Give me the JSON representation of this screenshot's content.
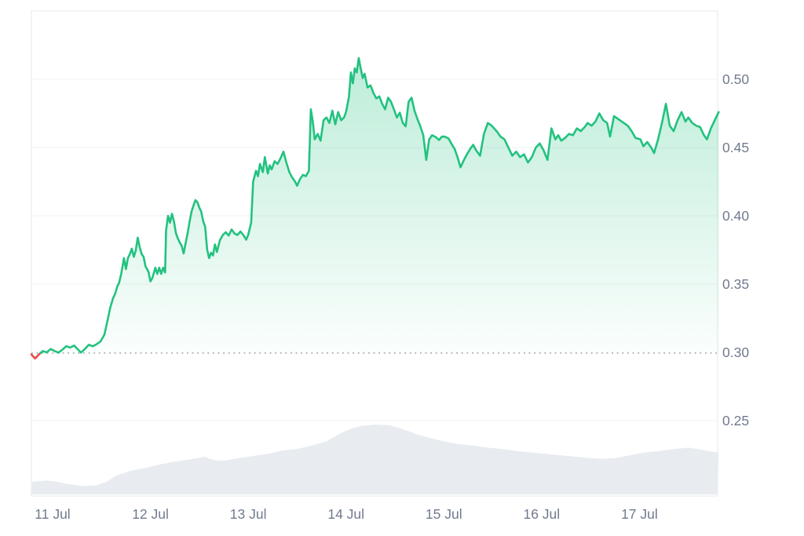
{
  "chart_data": {
    "type": "line",
    "title": "",
    "subtitle": "",
    "xlabel": "",
    "ylabel": "",
    "legend": "none",
    "grid": true,
    "y_axis": {
      "side": "right",
      "tick_values": [
        0.25,
        0.3,
        0.35,
        0.4,
        0.45,
        0.5
      ],
      "tick_labels": [
        "0.25",
        "0.30",
        "0.35",
        "0.40",
        "0.45",
        "0.50"
      ]
    },
    "x_axis": {
      "tick_days": [
        11,
        12,
        13,
        14,
        15,
        16,
        17
      ],
      "tick_labels": [
        "11 Jul",
        "12 Jul",
        "13 Jul",
        "14 Jul",
        "15 Jul",
        "16 Jul",
        "17 Jul"
      ],
      "range_days": [
        10.78,
        17.81
      ]
    },
    "baseline_value": 0.2995,
    "baseline_style": "dotted",
    "price_series": {
      "name": "price",
      "points": [
        [
          10.78,
          0.2985
        ],
        [
          10.82,
          0.2955
        ],
        [
          10.86,
          0.2985
        ],
        [
          10.9,
          0.301
        ],
        [
          10.94,
          0.3
        ],
        [
          10.98,
          0.3025
        ],
        [
          11.02,
          0.301
        ],
        [
          11.06,
          0.2998
        ],
        [
          11.1,
          0.302
        ],
        [
          11.14,
          0.3045
        ],
        [
          11.18,
          0.3035
        ],
        [
          11.22,
          0.305
        ],
        [
          11.26,
          0.302
        ],
        [
          11.29,
          0.2998
        ],
        [
          11.33,
          0.3025
        ],
        [
          11.37,
          0.3055
        ],
        [
          11.41,
          0.3045
        ],
        [
          11.45,
          0.306
        ],
        [
          11.49,
          0.308
        ],
        [
          11.53,
          0.313
        ],
        [
          11.56,
          0.323
        ],
        [
          11.59,
          0.333
        ],
        [
          11.62,
          0.34
        ],
        [
          11.64,
          0.343
        ],
        [
          11.66,
          0.348
        ],
        [
          11.68,
          0.351
        ],
        [
          11.7,
          0.357
        ],
        [
          11.72,
          0.365
        ],
        [
          11.73,
          0.369
        ],
        [
          11.75,
          0.361
        ],
        [
          11.77,
          0.369
        ],
        [
          11.79,
          0.372
        ],
        [
          11.81,
          0.376
        ],
        [
          11.83,
          0.37
        ],
        [
          11.85,
          0.3745
        ],
        [
          11.87,
          0.384
        ],
        [
          11.89,
          0.377
        ],
        [
          11.91,
          0.372
        ],
        [
          11.93,
          0.37
        ],
        [
          11.95,
          0.363
        ],
        [
          11.98,
          0.359
        ],
        [
          12.0,
          0.352
        ],
        [
          12.02,
          0.3545
        ],
        [
          12.05,
          0.362
        ],
        [
          12.07,
          0.3575
        ],
        [
          12.09,
          0.362
        ],
        [
          12.11,
          0.3575
        ],
        [
          12.13,
          0.362
        ],
        [
          12.15,
          0.3585
        ],
        [
          12.16,
          0.389
        ],
        [
          12.18,
          0.4
        ],
        [
          12.2,
          0.395
        ],
        [
          12.22,
          0.4015
        ],
        [
          12.24,
          0.396
        ],
        [
          12.26,
          0.3875
        ],
        [
          12.28,
          0.3835
        ],
        [
          12.3,
          0.3805
        ],
        [
          12.32,
          0.378
        ],
        [
          12.34,
          0.3725
        ],
        [
          12.36,
          0.38
        ],
        [
          12.38,
          0.387
        ],
        [
          12.4,
          0.3955
        ],
        [
          12.42,
          0.403
        ],
        [
          12.44,
          0.4075
        ],
        [
          12.46,
          0.4115
        ],
        [
          12.48,
          0.41
        ],
        [
          12.5,
          0.406
        ],
        [
          12.52,
          0.403
        ],
        [
          12.54,
          0.396
        ],
        [
          12.56,
          0.392
        ],
        [
          12.58,
          0.3755
        ],
        [
          12.6,
          0.369
        ],
        [
          12.62,
          0.373
        ],
        [
          12.64,
          0.371
        ],
        [
          12.66,
          0.379
        ],
        [
          12.68,
          0.3735
        ],
        [
          12.71,
          0.382
        ],
        [
          12.74,
          0.386
        ],
        [
          12.77,
          0.388
        ],
        [
          12.8,
          0.3855
        ],
        [
          12.83,
          0.39
        ],
        [
          12.86,
          0.387
        ],
        [
          12.89,
          0.386
        ],
        [
          12.92,
          0.3885
        ],
        [
          12.95,
          0.386
        ],
        [
          12.98,
          0.3825
        ],
        [
          13.0,
          0.386
        ],
        [
          13.03,
          0.395
        ],
        [
          13.05,
          0.425
        ],
        [
          13.08,
          0.433
        ],
        [
          13.1,
          0.429
        ],
        [
          13.12,
          0.438
        ],
        [
          13.15,
          0.432
        ],
        [
          13.17,
          0.443
        ],
        [
          13.2,
          0.431
        ],
        [
          13.22,
          0.437
        ],
        [
          13.24,
          0.434
        ],
        [
          13.27,
          0.44
        ],
        [
          13.3,
          0.438
        ],
        [
          13.33,
          0.442
        ],
        [
          13.36,
          0.447
        ],
        [
          13.39,
          0.439
        ],
        [
          13.42,
          0.432
        ],
        [
          13.45,
          0.428
        ],
        [
          13.48,
          0.425
        ],
        [
          13.5,
          0.422
        ],
        [
          13.53,
          0.427
        ],
        [
          13.56,
          0.43
        ],
        [
          13.59,
          0.429
        ],
        [
          13.62,
          0.433
        ],
        [
          13.64,
          0.478
        ],
        [
          13.66,
          0.469
        ],
        [
          13.68,
          0.456
        ],
        [
          13.71,
          0.46
        ],
        [
          13.74,
          0.455
        ],
        [
          13.77,
          0.47
        ],
        [
          13.8,
          0.472
        ],
        [
          13.83,
          0.468
        ],
        [
          13.86,
          0.477
        ],
        [
          13.89,
          0.467
        ],
        [
          13.92,
          0.476
        ],
        [
          13.95,
          0.47
        ],
        [
          13.98,
          0.472
        ],
        [
          14.0,
          0.476
        ],
        [
          14.03,
          0.487
        ],
        [
          14.05,
          0.505
        ],
        [
          14.07,
          0.497
        ],
        [
          14.09,
          0.508
        ],
        [
          14.11,
          0.505
        ],
        [
          14.13,
          0.5155
        ],
        [
          14.15,
          0.508
        ],
        [
          14.17,
          0.501
        ],
        [
          14.19,
          0.504
        ],
        [
          14.22,
          0.494
        ],
        [
          14.25,
          0.4955
        ],
        [
          14.28,
          0.49
        ],
        [
          14.31,
          0.486
        ],
        [
          14.34,
          0.4875
        ],
        [
          14.37,
          0.482
        ],
        [
          14.4,
          0.478
        ],
        [
          14.43,
          0.4865
        ],
        [
          14.46,
          0.4835
        ],
        [
          14.49,
          0.478
        ],
        [
          14.52,
          0.472
        ],
        [
          14.55,
          0.4755
        ],
        [
          14.58,
          0.468
        ],
        [
          14.61,
          0.4655
        ],
        [
          14.64,
          0.4835
        ],
        [
          14.67,
          0.4865
        ],
        [
          14.7,
          0.477
        ],
        [
          14.73,
          0.471
        ],
        [
          14.76,
          0.4655
        ],
        [
          14.79,
          0.459
        ],
        [
          14.82,
          0.441
        ],
        [
          14.85,
          0.456
        ],
        [
          14.88,
          0.459
        ],
        [
          14.92,
          0.4575
        ],
        [
          14.95,
          0.4555
        ],
        [
          14.98,
          0.458
        ],
        [
          15.01,
          0.458
        ],
        [
          15.05,
          0.4565
        ],
        [
          15.08,
          0.4525
        ],
        [
          15.11,
          0.449
        ],
        [
          15.14,
          0.443
        ],
        [
          15.17,
          0.4355
        ],
        [
          15.21,
          0.4415
        ],
        [
          15.24,
          0.4455
        ],
        [
          15.27,
          0.449
        ],
        [
          15.3,
          0.452
        ],
        [
          15.33,
          0.448
        ],
        [
          15.37,
          0.444
        ],
        [
          15.41,
          0.46
        ],
        [
          15.45,
          0.468
        ],
        [
          15.49,
          0.466
        ],
        [
          15.54,
          0.462
        ],
        [
          15.58,
          0.458
        ],
        [
          15.62,
          0.456
        ],
        [
          15.66,
          0.45
        ],
        [
          15.7,
          0.444
        ],
        [
          15.74,
          0.447
        ],
        [
          15.78,
          0.443
        ],
        [
          15.82,
          0.445
        ],
        [
          15.86,
          0.439
        ],
        [
          15.9,
          0.443
        ],
        [
          15.94,
          0.45
        ],
        [
          15.98,
          0.453
        ],
        [
          16.02,
          0.448
        ],
        [
          16.06,
          0.441
        ],
        [
          16.1,
          0.464
        ],
        [
          16.14,
          0.456
        ],
        [
          16.17,
          0.459
        ],
        [
          16.2,
          0.455
        ],
        [
          16.24,
          0.457
        ],
        [
          16.28,
          0.46
        ],
        [
          16.32,
          0.459
        ],
        [
          16.36,
          0.464
        ],
        [
          16.4,
          0.462
        ],
        [
          16.44,
          0.465
        ],
        [
          16.47,
          0.468
        ],
        [
          16.51,
          0.466
        ],
        [
          16.55,
          0.469
        ],
        [
          16.59,
          0.475
        ],
        [
          16.63,
          0.47
        ],
        [
          16.67,
          0.468
        ],
        [
          16.7,
          0.458
        ],
        [
          16.74,
          0.473
        ],
        [
          16.76,
          0.472
        ],
        [
          16.8,
          0.47
        ],
        [
          16.84,
          0.468
        ],
        [
          16.88,
          0.466
        ],
        [
          16.92,
          0.462
        ],
        [
          16.96,
          0.457
        ],
        [
          17.01,
          0.456
        ],
        [
          17.04,
          0.451
        ],
        [
          17.08,
          0.454
        ],
        [
          17.12,
          0.45
        ],
        [
          17.15,
          0.446
        ],
        [
          17.19,
          0.456
        ],
        [
          17.23,
          0.468
        ],
        [
          17.27,
          0.482
        ],
        [
          17.31,
          0.466
        ],
        [
          17.35,
          0.462
        ],
        [
          17.39,
          0.47
        ],
        [
          17.43,
          0.476
        ],
        [
          17.47,
          0.469
        ],
        [
          17.5,
          0.472
        ],
        [
          17.54,
          0.468
        ],
        [
          17.58,
          0.466
        ],
        [
          17.62,
          0.465
        ],
        [
          17.66,
          0.459
        ],
        [
          17.69,
          0.456
        ],
        [
          17.73,
          0.464
        ],
        [
          17.77,
          0.47
        ],
        [
          17.81,
          0.476
        ]
      ]
    },
    "volume_series": {
      "name": "volume",
      "unit": "relative (no axis shown)",
      "points": [
        [
          10.78,
          0.18
        ],
        [
          10.85,
          0.19
        ],
        [
          10.95,
          0.2
        ],
        [
          11.05,
          0.18
        ],
        [
          11.15,
          0.15
        ],
        [
          11.3,
          0.12
        ],
        [
          11.45,
          0.13
        ],
        [
          11.55,
          0.18
        ],
        [
          11.65,
          0.27
        ],
        [
          11.8,
          0.34
        ],
        [
          11.95,
          0.38
        ],
        [
          12.1,
          0.43
        ],
        [
          12.25,
          0.47
        ],
        [
          12.4,
          0.5
        ],
        [
          12.55,
          0.54
        ],
        [
          12.65,
          0.49
        ],
        [
          12.75,
          0.48
        ],
        [
          12.9,
          0.52
        ],
        [
          13.05,
          0.55
        ],
        [
          13.2,
          0.58
        ],
        [
          13.35,
          0.63
        ],
        [
          13.5,
          0.65
        ],
        [
          13.65,
          0.7
        ],
        [
          13.8,
          0.76
        ],
        [
          13.95,
          0.88
        ],
        [
          14.05,
          0.94
        ],
        [
          14.15,
          0.98
        ],
        [
          14.3,
          1.0
        ],
        [
          14.45,
          0.99
        ],
        [
          14.55,
          0.95
        ],
        [
          14.65,
          0.9
        ],
        [
          14.75,
          0.85
        ],
        [
          14.85,
          0.81
        ],
        [
          15.0,
          0.76
        ],
        [
          15.15,
          0.72
        ],
        [
          15.3,
          0.7
        ],
        [
          15.45,
          0.67
        ],
        [
          15.6,
          0.65
        ],
        [
          15.75,
          0.62
        ],
        [
          15.9,
          0.6
        ],
        [
          16.05,
          0.58
        ],
        [
          16.2,
          0.56
        ],
        [
          16.35,
          0.54
        ],
        [
          16.5,
          0.52
        ],
        [
          16.6,
          0.51
        ],
        [
          16.75,
          0.52
        ],
        [
          16.9,
          0.56
        ],
        [
          17.05,
          0.6
        ],
        [
          17.2,
          0.62
        ],
        [
          17.35,
          0.65
        ],
        [
          17.5,
          0.67
        ],
        [
          17.6,
          0.65
        ],
        [
          17.7,
          0.62
        ],
        [
          17.81,
          0.6
        ]
      ]
    },
    "colors": {
      "line_up": "#22c27f",
      "line_down": "#ea4b4b",
      "area_fill": "#22c27f",
      "volume_fill": "#e8ecf1",
      "baseline_dotted": "#9aa0aa",
      "gridline": "#f1f2f4",
      "plot_border": "#e6e8ec",
      "axis_text": "#707a8f",
      "background": "#ffffff"
    }
  }
}
